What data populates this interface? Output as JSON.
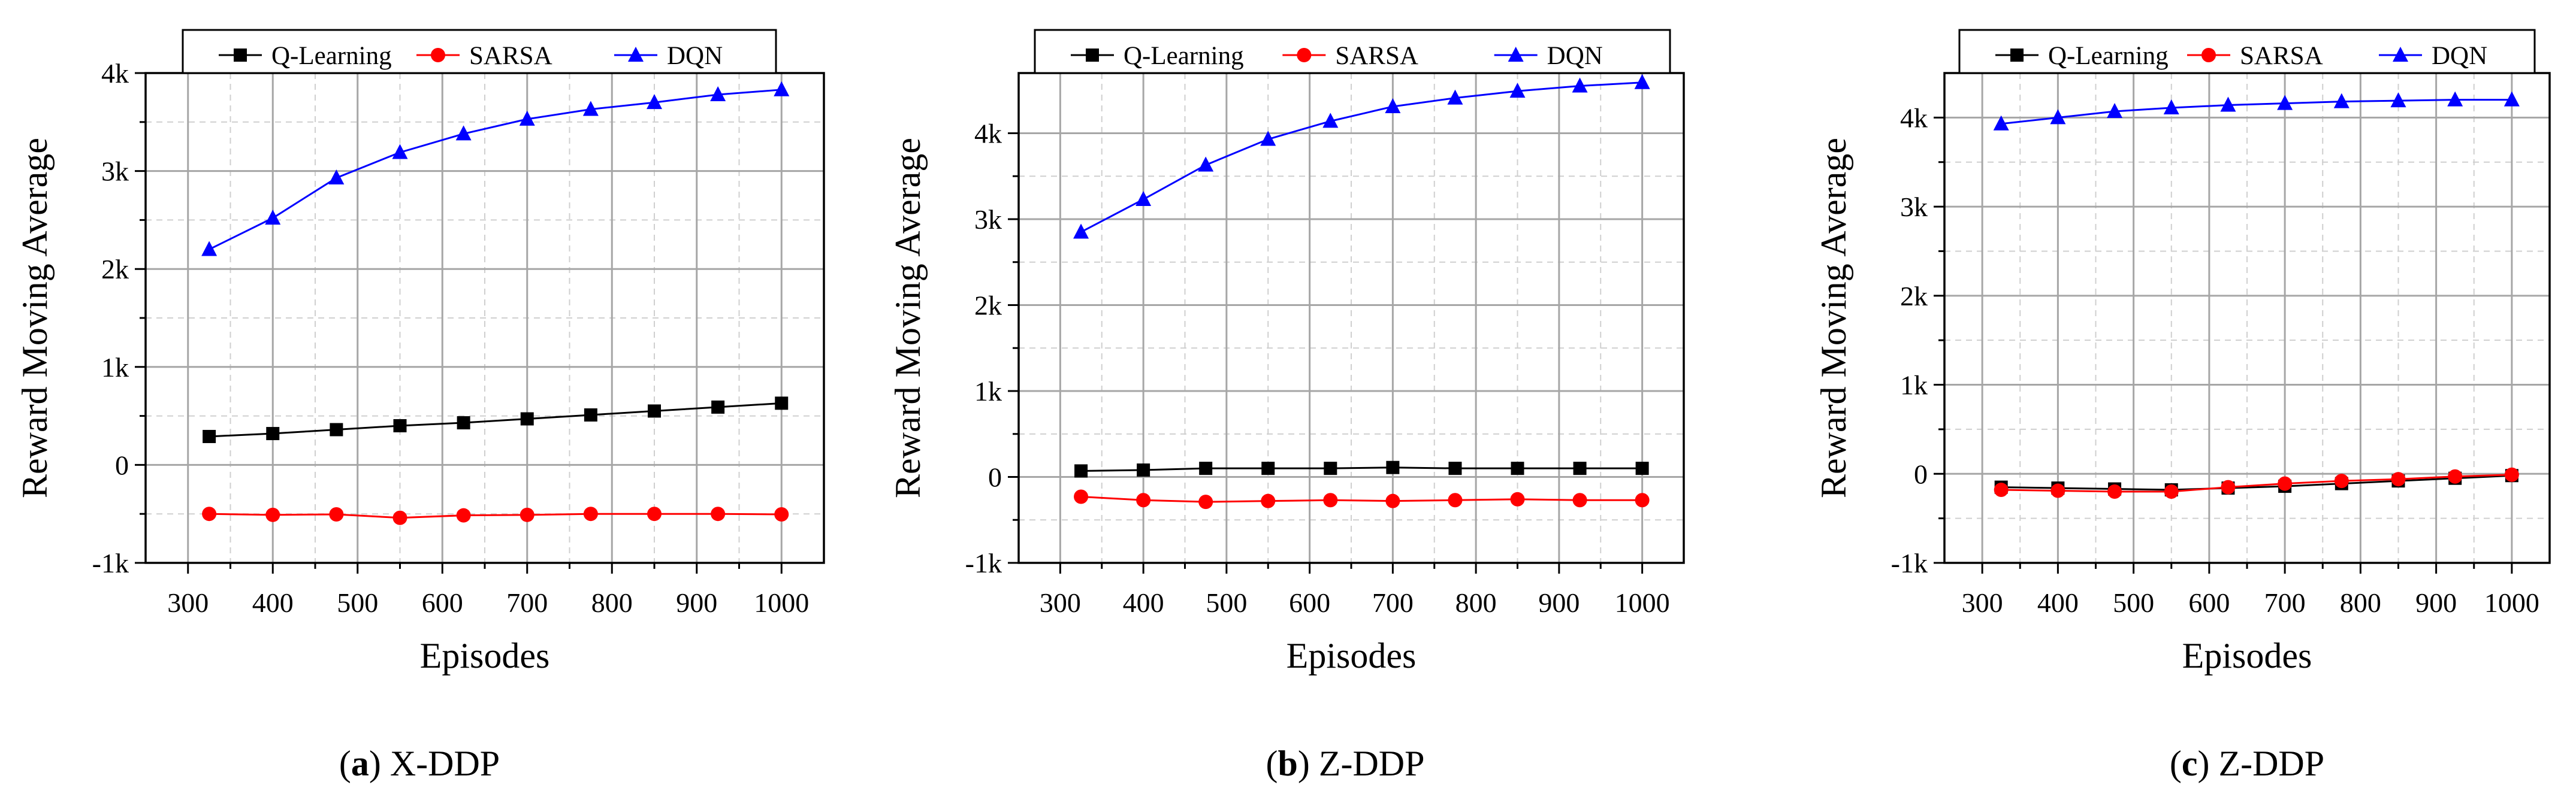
{
  "chart_data": [
    {
      "type": "line",
      "panel": "a",
      "caption_label": "a",
      "caption_text": "X-DDP",
      "xlabel": "Episodes",
      "ylabel": "Reward Moving Average",
      "xlim": [
        250,
        1050
      ],
      "ylim": [
        -1000,
        4000
      ],
      "xticks": [
        300,
        400,
        500,
        600,
        700,
        800,
        900,
        1000
      ],
      "xtick_labels": [
        "300",
        "400",
        "500",
        "600",
        "700",
        "800",
        "900",
        "1000"
      ],
      "yticks": [
        -1000,
        0,
        1000,
        2000,
        3000,
        4000
      ],
      "ytick_labels": [
        "-1k",
        "0",
        "1k",
        "2k",
        "3k",
        "4k"
      ],
      "grid": true,
      "legend_position": "top",
      "x": [
        325,
        400,
        475,
        550,
        625,
        700,
        775,
        850,
        925,
        1000
      ],
      "series": [
        {
          "name": "Q-Learning",
          "color": "#000000",
          "marker": "square",
          "values": [
            290,
            320,
            360,
            400,
            430,
            470,
            510,
            550,
            590,
            630
          ]
        },
        {
          "name": "SARSA",
          "color": "#ff0000",
          "marker": "circle",
          "values": [
            -500,
            -510,
            -505,
            -540,
            -515,
            -510,
            -500,
            -500,
            -500,
            -505
          ]
        },
        {
          "name": "DQN",
          "color": "#0000ff",
          "marker": "triangle",
          "values": [
            2200,
            2520,
            2930,
            3190,
            3380,
            3530,
            3630,
            3700,
            3780,
            3830
          ]
        }
      ]
    },
    {
      "type": "line",
      "panel": "b",
      "caption_label": "b",
      "caption_text": "Z-DDP",
      "xlabel": "Episodes",
      "ylabel": "Reward Moving Average",
      "xlim": [
        250,
        1050
      ],
      "ylim": [
        -1000,
        4700
      ],
      "xticks": [
        300,
        400,
        500,
        600,
        700,
        800,
        900,
        1000
      ],
      "xtick_labels": [
        "300",
        "400",
        "500",
        "600",
        "700",
        "800",
        "900",
        "1000"
      ],
      "yticks": [
        -1000,
        0,
        1000,
        2000,
        3000,
        4000
      ],
      "ytick_labels": [
        "-1k",
        "0",
        "1k",
        "2k",
        "3k",
        "4k"
      ],
      "grid": true,
      "legend_position": "top",
      "x": [
        325,
        400,
        475,
        550,
        625,
        700,
        775,
        850,
        925,
        1000
      ],
      "series": [
        {
          "name": "Q-Learning",
          "color": "#000000",
          "marker": "square",
          "values": [
            70,
            80,
            100,
            100,
            100,
            110,
            100,
            100,
            100,
            100
          ]
        },
        {
          "name": "SARSA",
          "color": "#ff0000",
          "marker": "circle",
          "values": [
            -230,
            -270,
            -290,
            -280,
            -270,
            -280,
            -270,
            -260,
            -270,
            -270
          ]
        },
        {
          "name": "DQN",
          "color": "#0000ff",
          "marker": "triangle",
          "values": [
            2850,
            3230,
            3630,
            3930,
            4140,
            4310,
            4410,
            4490,
            4550,
            4590
          ]
        }
      ]
    },
    {
      "type": "line",
      "panel": "c",
      "caption_label": "c",
      "caption_text": "Z-DDP",
      "xlabel": "Episodes",
      "ylabel": "Reward Moving Average",
      "xlim": [
        250,
        1050
      ],
      "ylim": [
        -1000,
        4500
      ],
      "xticks": [
        300,
        400,
        500,
        600,
        700,
        800,
        900,
        1000
      ],
      "xtick_labels": [
        "300",
        "400",
        "500",
        "600",
        "700",
        "800",
        "900",
        "1000"
      ],
      "yticks": [
        -1000,
        0,
        1000,
        2000,
        3000,
        4000
      ],
      "ytick_labels": [
        "-1k",
        "0",
        "1k",
        "2k",
        "3k",
        "4k"
      ],
      "grid": true,
      "legend_position": "top",
      "x": [
        325,
        400,
        475,
        550,
        625,
        700,
        775,
        850,
        925,
        1000
      ],
      "series": [
        {
          "name": "Q-Learning",
          "color": "#000000",
          "marker": "square",
          "values": [
            -150,
            -160,
            -170,
            -180,
            -160,
            -140,
            -110,
            -80,
            -50,
            -20
          ]
        },
        {
          "name": "SARSA",
          "color": "#ff0000",
          "marker": "circle",
          "values": [
            -180,
            -190,
            -200,
            -200,
            -150,
            -110,
            -80,
            -60,
            -30,
            -10
          ]
        },
        {
          "name": "DQN",
          "color": "#0000ff",
          "marker": "triangle",
          "values": [
            3930,
            4000,
            4070,
            4110,
            4140,
            4160,
            4180,
            4190,
            4200,
            4200
          ]
        }
      ]
    }
  ]
}
